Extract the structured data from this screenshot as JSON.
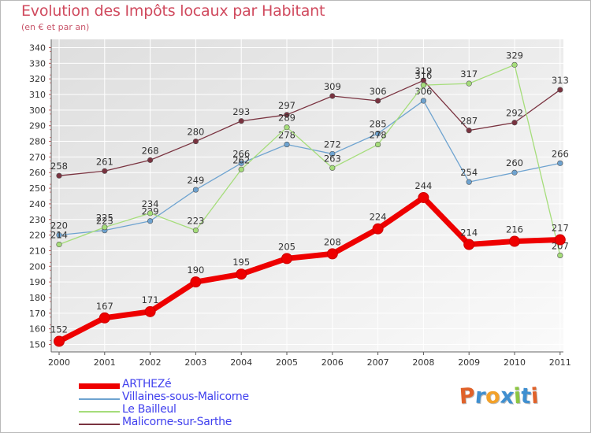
{
  "chart_data": {
    "type": "line",
    "title": "Evolution des Impôts locaux par Habitant",
    "subtitle": "(en € et par an)",
    "categories": [
      "2000",
      "2001",
      "2002",
      "2003",
      "2004",
      "2005",
      "2006",
      "2007",
      "2008",
      "2009",
      "2010",
      "2011"
    ],
    "ylim": [
      150,
      340
    ],
    "yticks": [
      150,
      160,
      170,
      180,
      190,
      200,
      210,
      220,
      230,
      240,
      250,
      260,
      270,
      280,
      290,
      300,
      310,
      320,
      330,
      340
    ],
    "grid": true,
    "legend_position": "bottom-left",
    "series": [
      {
        "name": "Malicorne-sur-Sarthe",
        "color": "#7a3340",
        "values": [
          258,
          261,
          268,
          280,
          293,
          297,
          309,
          306,
          319,
          287,
          292,
          313
        ]
      },
      {
        "name": "Villaines-sous-Malicorne",
        "color": "#6ea3d0",
        "values": [
          220,
          223,
          229,
          249,
          266,
          278,
          272,
          285,
          306,
          254,
          260,
          266
        ]
      },
      {
        "name": "Le Bailleul",
        "color": "#a5dd7a",
        "values": [
          214,
          225,
          234,
          223,
          262,
          289,
          263,
          278,
          316,
          317,
          329,
          207
        ]
      },
      {
        "name": "ARTHEZé",
        "color": "#ee0000",
        "values": [
          152,
          167,
          171,
          190,
          195,
          205,
          208,
          224,
          244,
          214,
          216,
          217
        ]
      }
    ],
    "legend_order": [
      "ARTHEZé",
      "Villaines-sous-Malicorne",
      "Le Bailleul",
      "Malicorne-sur-Sarthe"
    ]
  },
  "logo": {
    "text": "Proxiti",
    "letters": [
      {
        "ch": "P",
        "color": "#e0622a"
      },
      {
        "ch": "r",
        "color": "#3f8fd0"
      },
      {
        "ch": "o",
        "color": "#f2a12a"
      },
      {
        "ch": "x",
        "color": "#3f8fd0"
      },
      {
        "ch": "i",
        "color": "#8cc640"
      },
      {
        "ch": "t",
        "color": "#3f8fd0"
      },
      {
        "ch": "i",
        "color": "#e0622a"
      }
    ]
  }
}
